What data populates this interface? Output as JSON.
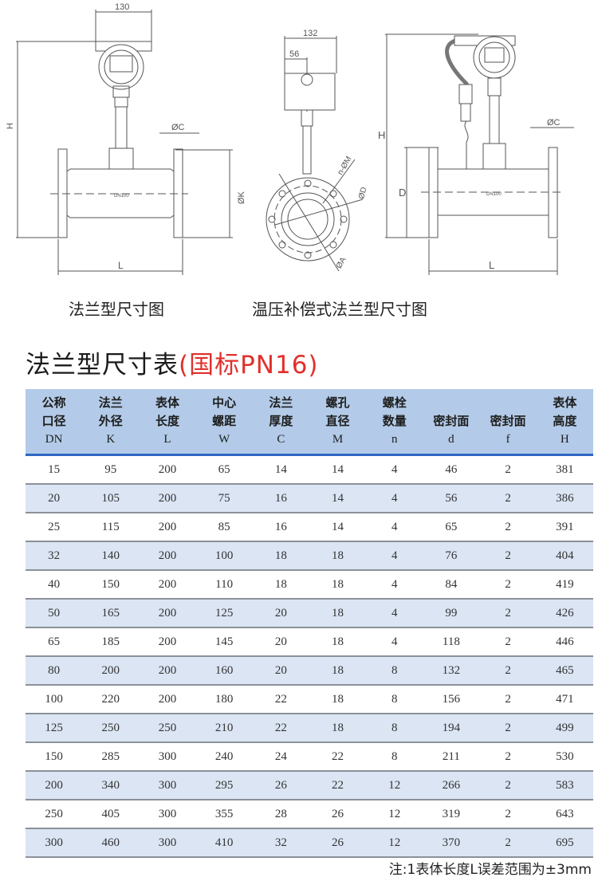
{
  "drawings": {
    "flange": {
      "dims": {
        "width": "130",
        "height": "H",
        "flange_thickness": "ØC",
        "flange_od": "ØK",
        "length": "L",
        "nameplate": "DN100"
      },
      "caption": "法兰型尺寸图"
    },
    "compensated": {
      "dims": {
        "width": "132",
        "offset": "56",
        "bolt_holes": "n-ØM",
        "bolt_circle": "ØD",
        "other": "ØA",
        "height": "H",
        "seal_dia": "D",
        "flange_thickness": "ØC",
        "length": "L",
        "nameplate": "DN100"
      },
      "caption": "温压补偿式法兰型尺寸图"
    }
  },
  "table_title": {
    "main": "法兰型尺寸表",
    "standard": "(国标PN16)"
  },
  "colors": {
    "header_bg": "#b3cbe8",
    "alt_row": "#dbe5f4",
    "accent_line": "#2f67c3",
    "standard_red": "#e0302c"
  },
  "table": {
    "headers": [
      {
        "l1": "公称",
        "l2": "口径",
        "sym": "DN"
      },
      {
        "l1": "法兰",
        "l2": "外径",
        "sym": "K"
      },
      {
        "l1": "表体",
        "l2": "长度",
        "sym": "L"
      },
      {
        "l1": "中心",
        "l2": "螺距",
        "sym": "W"
      },
      {
        "l1": "法兰",
        "l2": "厚度",
        "sym": "C"
      },
      {
        "l1": "螺孔",
        "l2": "直径",
        "sym": "M"
      },
      {
        "l1": "螺栓",
        "l2": "数量",
        "sym": "n"
      },
      {
        "l1": "",
        "l2": "密封面",
        "sym": "d"
      },
      {
        "l1": "",
        "l2": "密封面",
        "sym": "f"
      },
      {
        "l1": "表体",
        "l2": "高度",
        "sym": "H"
      }
    ],
    "rows": [
      [
        "15",
        "95",
        "200",
        "65",
        "14",
        "14",
        "4",
        "46",
        "2",
        "381"
      ],
      [
        "20",
        "105",
        "200",
        "75",
        "16",
        "14",
        "4",
        "56",
        "2",
        "386"
      ],
      [
        "25",
        "115",
        "200",
        "85",
        "16",
        "14",
        "4",
        "65",
        "2",
        "391"
      ],
      [
        "32",
        "140",
        "200",
        "100",
        "18",
        "18",
        "4",
        "76",
        "2",
        "404"
      ],
      [
        "40",
        "150",
        "200",
        "110",
        "18",
        "18",
        "4",
        "84",
        "2",
        "419"
      ],
      [
        "50",
        "165",
        "200",
        "125",
        "20",
        "18",
        "4",
        "99",
        "2",
        "426"
      ],
      [
        "65",
        "185",
        "200",
        "145",
        "20",
        "18",
        "4",
        "118",
        "2",
        "446"
      ],
      [
        "80",
        "200",
        "200",
        "160",
        "20",
        "18",
        "8",
        "132",
        "2",
        "465"
      ],
      [
        "100",
        "220",
        "200",
        "180",
        "22",
        "18",
        "8",
        "156",
        "2",
        "471"
      ],
      [
        "125",
        "250",
        "250",
        "210",
        "22",
        "18",
        "8",
        "194",
        "2",
        "499"
      ],
      [
        "150",
        "285",
        "300",
        "240",
        "24",
        "22",
        "8",
        "211",
        "2",
        "530"
      ],
      [
        "200",
        "340",
        "300",
        "295",
        "26",
        "22",
        "12",
        "266",
        "2",
        "583"
      ],
      [
        "250",
        "405",
        "300",
        "355",
        "28",
        "26",
        "12",
        "319",
        "2",
        "643"
      ],
      [
        "300",
        "460",
        "300",
        "410",
        "32",
        "26",
        "12",
        "370",
        "2",
        "695"
      ]
    ]
  },
  "note": "注:1表体长度L误差范围为±3mm"
}
